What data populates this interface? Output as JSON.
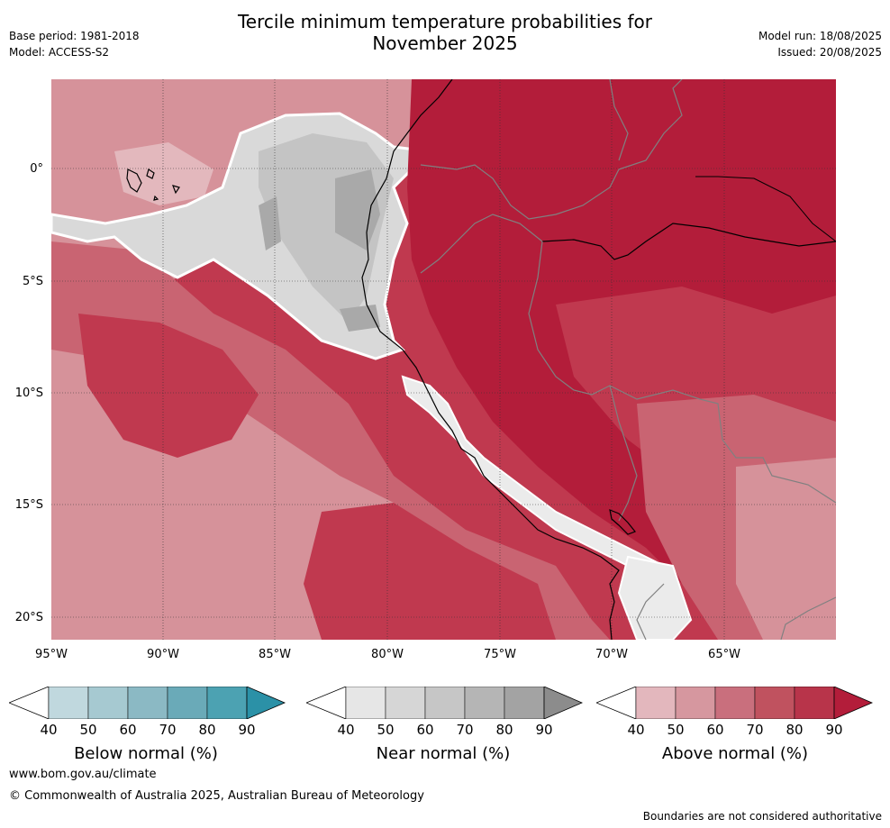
{
  "header": {
    "title_line1": "Tercile minimum temperature probabilities for",
    "title_line2": "November 2025",
    "base_period": "Base period: 1981-2018",
    "model": "Model: ACCESS-S2",
    "model_run": "Model run: 18/08/2025",
    "issued": "Issued: 20/08/2025"
  },
  "map": {
    "lat_labels": [
      "0°",
      "5°S",
      "10°S",
      "15°S",
      "20°S"
    ],
    "lon_labels": [
      "95°W",
      "90°W",
      "85°W",
      "80°W",
      "75°W",
      "70°W",
      "65°W"
    ],
    "colors": {
      "above_90": "#b31d3a",
      "above_80": "#c0394f",
      "above_70": "#c96472",
      "above_60": "#d6929a",
      "above_50": "#e3b8bd",
      "near_60": "#d9d9d9",
      "near_70": "#c4c4c4",
      "near_80": "#a9a9a9",
      "near_50": "#ebebeb"
    }
  },
  "colorbars": {
    "below": {
      "title": "Below normal (%)",
      "ticks": [
        "40",
        "50",
        "60",
        "70",
        "80",
        "90"
      ],
      "colors": [
        "#ffffff",
        "#c0d8de",
        "#a6c9d1",
        "#8bb9c4",
        "#6aaab8",
        "#4ca2b2",
        "#2b91a7"
      ]
    },
    "near": {
      "title": "Near normal (%)",
      "ticks": [
        "40",
        "50",
        "60",
        "70",
        "80",
        "90"
      ],
      "colors": [
        "#ffffff",
        "#e6e6e6",
        "#d6d6d6",
        "#c6c6c6",
        "#b5b5b5",
        "#a3a3a3",
        "#8c8c8c"
      ]
    },
    "above": {
      "title": "Above normal (%)",
      "ticks": [
        "40",
        "50",
        "60",
        "70",
        "80",
        "90"
      ],
      "colors": [
        "#ffffff",
        "#e3b7bd",
        "#d6979f",
        "#c96f7d",
        "#c0525f",
        "#b8344a",
        "#b31d3a"
      ]
    }
  },
  "footer": {
    "website": "www.bom.gov.au/climate",
    "copyright": "© Commonwealth of Australia 2025, Australian Bureau of Meteorology",
    "disclaimer": "Boundaries are not considered authoritative"
  }
}
